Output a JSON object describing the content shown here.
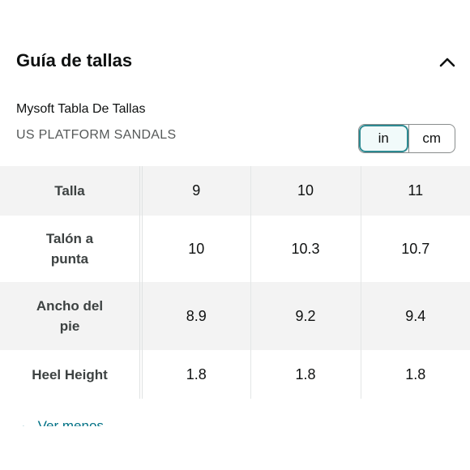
{
  "header": {
    "title": "Guía de tallas",
    "collapse_icon": "chevron-up-icon"
  },
  "chart": {
    "brand_line": "Mysoft Tabla De Tallas",
    "category_line": "US PLATFORM SANDALS"
  },
  "units": {
    "in_label": "in",
    "cm_label": "cm",
    "selected": "in"
  },
  "table": {
    "rows": [
      {
        "label": "Talla",
        "values": [
          "9",
          "10",
          "11"
        ]
      },
      {
        "label": "Talón a punta",
        "values": [
          "10",
          "10.3",
          "10.7"
        ]
      },
      {
        "label": "Ancho del pie",
        "values": [
          "8.9",
          "9.2",
          "9.4"
        ]
      },
      {
        "label": "Heel Height",
        "values": [
          "1.8",
          "1.8",
          "1.8"
        ]
      }
    ]
  },
  "footer": {
    "toggle_label": "Ver menos",
    "toggle_icon": "triangle-up-icon"
  }
}
